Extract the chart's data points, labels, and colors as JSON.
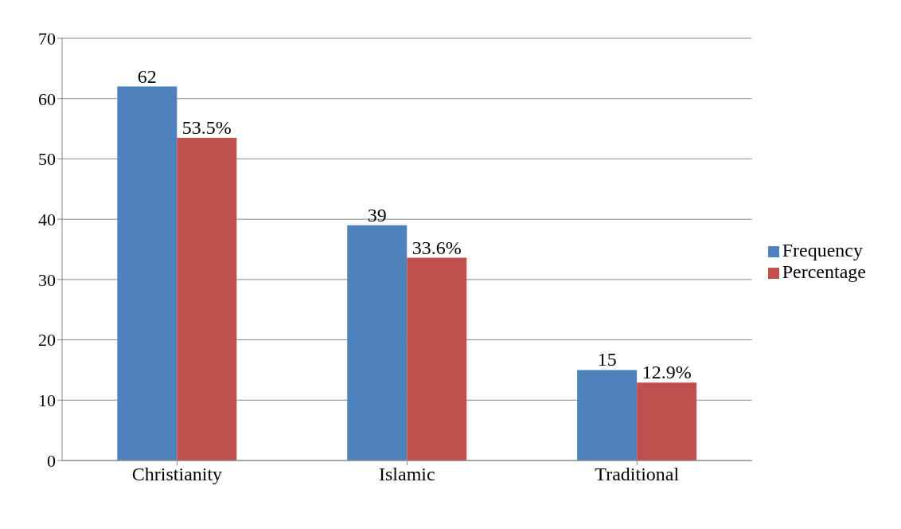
{
  "chart_data": {
    "type": "bar",
    "categories": [
      "Christianity",
      "Islamic",
      "Traditional"
    ],
    "series": [
      {
        "name": "Frequency",
        "color": "#4f81bd",
        "values": [
          62,
          39,
          15
        ],
        "value_labels": [
          "62",
          "39",
          "15"
        ]
      },
      {
        "name": "Percentage",
        "color": "#c0504d",
        "values": [
          53.5,
          33.6,
          12.9
        ],
        "value_labels": [
          "53.5%",
          "33.6%",
          "12.9%"
        ]
      }
    ],
    "ylim": [
      0,
      70
    ],
    "yticks": [
      0,
      10,
      20,
      30,
      40,
      50,
      60,
      70
    ],
    "grid": "y",
    "legend": "right"
  }
}
